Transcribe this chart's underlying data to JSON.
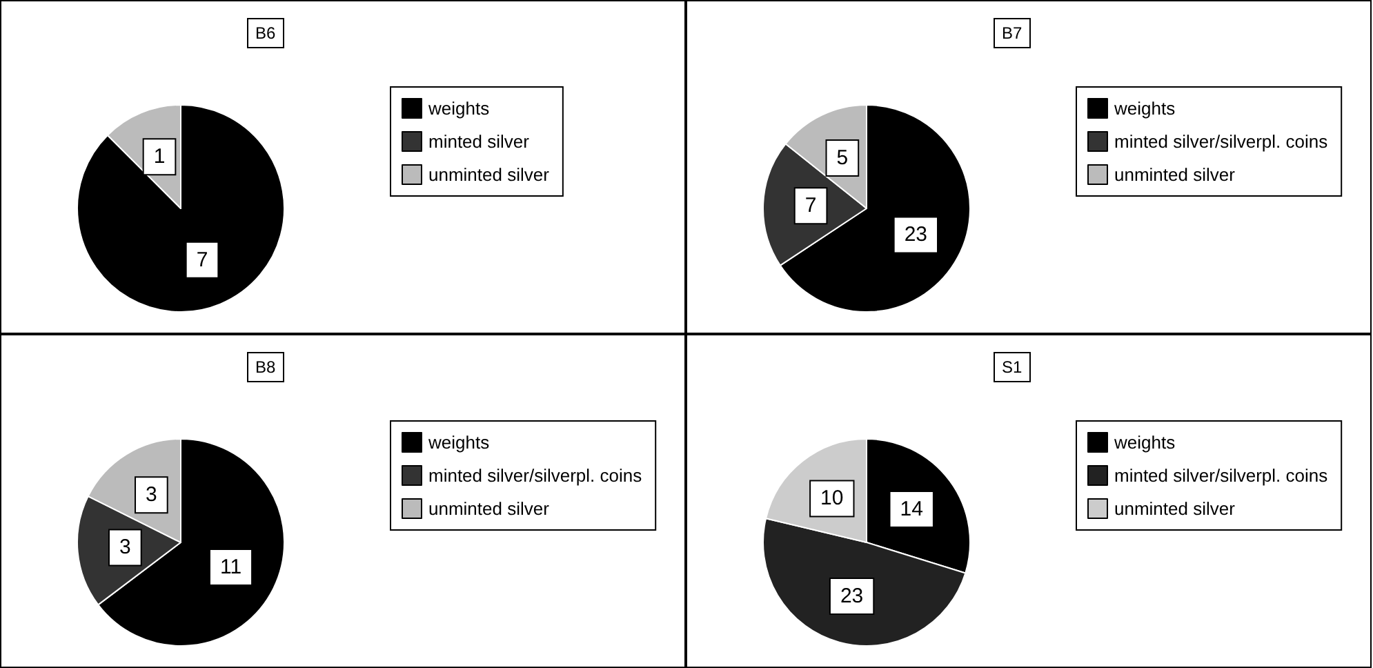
{
  "chart_data": [
    {
      "type": "pie",
      "title": "B6",
      "categories": [
        "weights",
        "minted silver",
        "unminted silver"
      ],
      "values": [
        7,
        null,
        1
      ],
      "colors": [
        "#000000",
        "#333333",
        "#bbbbbb"
      ],
      "data_labels": true,
      "legend": "right"
    },
    {
      "type": "pie",
      "title": "B7",
      "categories": [
        "weights",
        "minted silver/silverpl. coins",
        "unminted silver"
      ],
      "values": [
        23,
        7,
        5
      ],
      "colors": [
        "#000000",
        "#333333",
        "#bbbbbb"
      ],
      "data_labels": true,
      "legend": "right"
    },
    {
      "type": "pie",
      "title": "B8",
      "categories": [
        "weights",
        "minted silver/silverpl. coins",
        "unminted silver"
      ],
      "values": [
        11,
        3,
        3
      ],
      "colors": [
        "#000000",
        "#333333",
        "#bbbbbb"
      ],
      "data_labels": true,
      "legend": "right"
    },
    {
      "type": "pie",
      "title": "S1",
      "categories": [
        "weights",
        "minted silver/silverpl. coins",
        "unminted silver"
      ],
      "values": [
        14,
        23,
        10
      ],
      "colors": [
        "#000000",
        "#222222",
        "#cccccc"
      ],
      "data_labels": true,
      "legend": "right"
    }
  ]
}
